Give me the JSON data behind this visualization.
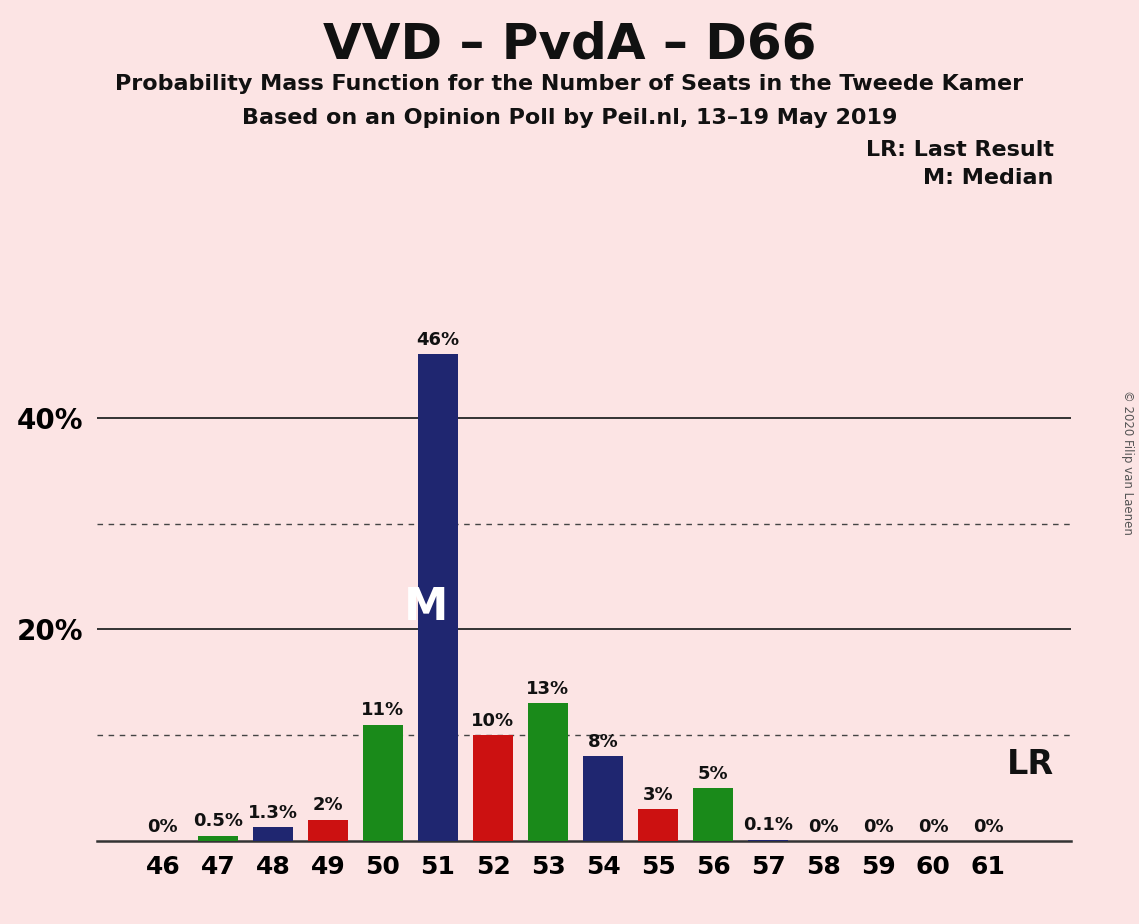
{
  "title": "VVD – PvdA – D66",
  "subtitle1": "Probability Mass Function for the Number of Seats in the Tweede Kamer",
  "subtitle2": "Based on an Opinion Poll by Peil.nl, 13–19 May 2019",
  "copyright": "© 2020 Filip van Laenen",
  "legend_lr": "LR: Last Result",
  "legend_m": "M: Median",
  "seats": [
    46,
    47,
    48,
    49,
    50,
    51,
    52,
    53,
    54,
    55,
    56,
    57,
    58,
    59,
    60,
    61
  ],
  "values": [
    0.0,
    0.5,
    1.3,
    2.0,
    11.0,
    46.0,
    10.0,
    13.0,
    8.0,
    3.0,
    5.0,
    0.1,
    0.0,
    0.0,
    0.0,
    0.0
  ],
  "labels": [
    "0%",
    "0.5%",
    "1.3%",
    "2%",
    "11%",
    "46%",
    "10%",
    "13%",
    "8%",
    "3%",
    "5%",
    "0.1%",
    "0%",
    "0%",
    "0%",
    "0%"
  ],
  "colors": [
    "#1f2670",
    "#1a8a1a",
    "#1f2670",
    "#cc1111",
    "#1a8a1a",
    "#1f2670",
    "#cc1111",
    "#1a8a1a",
    "#1f2670",
    "#cc1111",
    "#1a8a1a",
    "#1f2670",
    "#1f2670",
    "#1f2670",
    "#1f2670",
    "#1f2670"
  ],
  "median_seat": 51,
  "background_color": "#fce4e4",
  "ytick_vals": [
    0,
    10,
    20,
    30,
    40,
    50
  ],
  "ylim_max": 52,
  "dotted_lines": [
    10,
    30
  ],
  "solid_lines": [
    20,
    40
  ],
  "xlim_min": 44.8,
  "xlim_max": 62.5,
  "bar_width": 0.72,
  "title_fontsize": 36,
  "subtitle_fontsize": 16,
  "ytick_fontsize": 20,
  "xtick_fontsize": 18,
  "label_fontsize": 13,
  "legend_fontsize": 16,
  "lr_fontsize": 24,
  "m_fontsize": 32
}
